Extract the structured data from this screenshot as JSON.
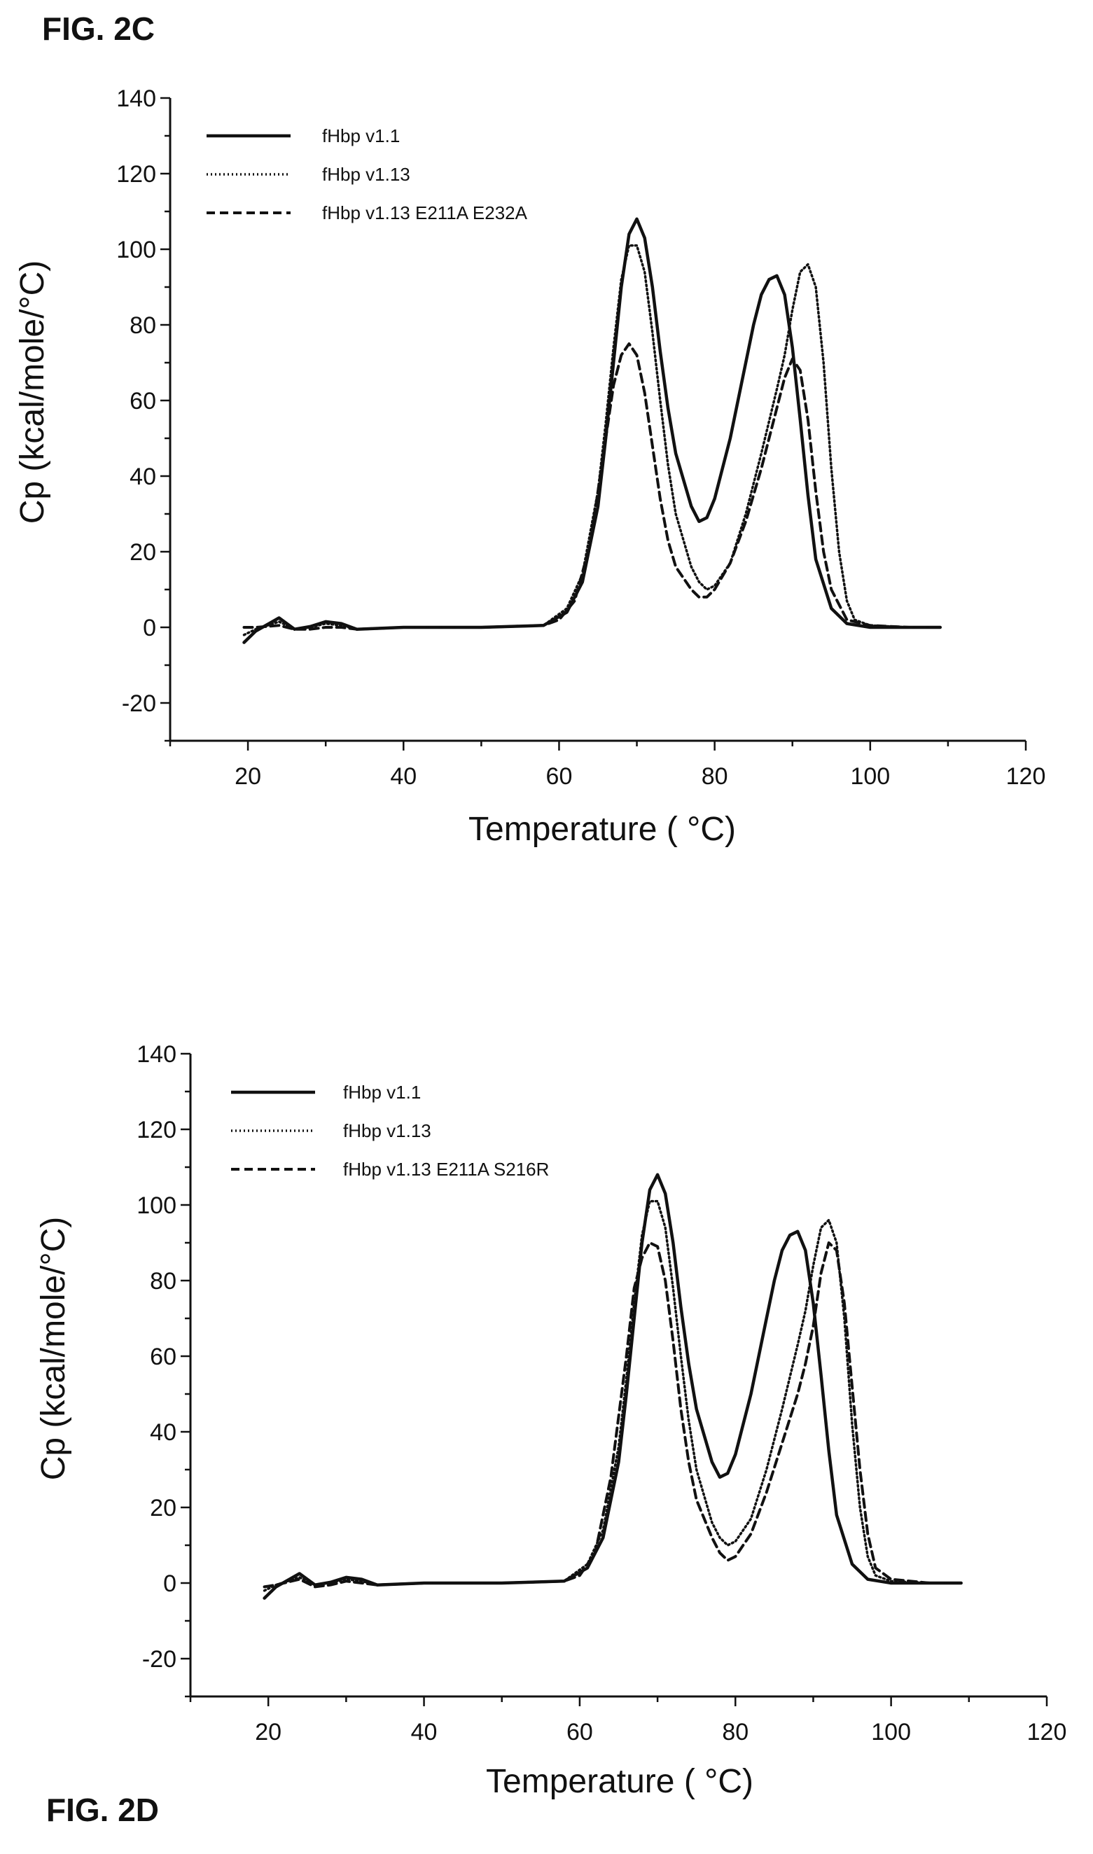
{
  "figures": [
    {
      "label": "FIG. 2C"
    },
    {
      "label": "FIG. 2D"
    }
  ],
  "chart_data": [
    {
      "type": "line",
      "title": "",
      "xlabel": "Temperature (  °C)",
      "ylabel": "Cp (kcal/mole/°C)",
      "xlim": [
        10,
        120
      ],
      "ylim": [
        -30,
        140
      ],
      "xticks": [
        20,
        40,
        60,
        80,
        100,
        120
      ],
      "yticks": [
        -20,
        0,
        20,
        40,
        60,
        80,
        100,
        120,
        140
      ],
      "legend_position": "top-left",
      "series": [
        {
          "name": "fHbp v1.1",
          "style": "solid",
          "x": [
            19.5,
            21,
            24,
            26,
            28,
            30,
            32,
            34,
            40,
            50,
            58,
            61,
            63,
            65,
            66,
            67,
            68,
            69,
            70,
            71,
            72,
            73,
            74,
            75,
            77,
            78,
            79,
            80,
            82,
            84,
            85,
            86,
            87,
            88,
            89,
            90,
            91,
            92,
            93,
            95,
            97,
            100,
            105,
            109
          ],
          "y": [
            -4,
            -1,
            2.5,
            -0.5,
            0.2,
            1.5,
            1,
            -0.5,
            0,
            0,
            0.5,
            4,
            12,
            32,
            50,
            70,
            90,
            104,
            108,
            103,
            90,
            73,
            58,
            46,
            32,
            28,
            29,
            34,
            50,
            70,
            80,
            88,
            92,
            93,
            88,
            74,
            55,
            35,
            18,
            5,
            1,
            0,
            0,
            0
          ]
        },
        {
          "name": "fHbp v1.13",
          "style": "dotted",
          "x": [
            19.5,
            21,
            24,
            26,
            28,
            30,
            32,
            34,
            40,
            50,
            58,
            61,
            63,
            65,
            66,
            67,
            68,
            69,
            70,
            71,
            72,
            73,
            74,
            75,
            77,
            78,
            79,
            80,
            82,
            84,
            86,
            88,
            89,
            90,
            91,
            92,
            93,
            94,
            95,
            96,
            97,
            98,
            100,
            105,
            109
          ],
          "y": [
            -2,
            -0.5,
            1.5,
            -0.5,
            0,
            1,
            0.5,
            -0.5,
            0,
            0,
            0.5,
            5,
            14,
            36,
            54,
            74,
            92,
            101,
            101,
            94,
            78,
            60,
            43,
            30,
            16,
            12,
            10,
            11,
            17,
            30,
            46,
            63,
            72,
            84,
            94,
            96,
            90,
            70,
            42,
            20,
            7,
            2,
            0.5,
            0,
            0
          ]
        },
        {
          "name": "fHbp v1.13 E211A E232A",
          "style": "dashed",
          "x": [
            19.5,
            21,
            24,
            26,
            28,
            30,
            32,
            34,
            40,
            50,
            58,
            60,
            62,
            64,
            66,
            67,
            68,
            69,
            70,
            71,
            72,
            73,
            74,
            75,
            77,
            78,
            79,
            80,
            82,
            84,
            86,
            88,
            89,
            90,
            91,
            92,
            93,
            94,
            95,
            97,
            100,
            105,
            109
          ],
          "y": [
            0,
            0,
            0.5,
            -0.5,
            -0.5,
            0,
            0,
            -0.5,
            0,
            0,
            0.5,
            2,
            7,
            22,
            50,
            64,
            72,
            75,
            72,
            62,
            48,
            34,
            23,
            16,
            10,
            8,
            8,
            10,
            17,
            28,
            42,
            58,
            66,
            71,
            68,
            55,
            36,
            20,
            10,
            2,
            0.5,
            0,
            0
          ]
        }
      ]
    },
    {
      "type": "line",
      "title": "",
      "xlabel": "Temperature (  °C)",
      "ylabel": "Cp (kcal/mole/°C)",
      "xlim": [
        10,
        120
      ],
      "ylim": [
        -30,
        140
      ],
      "xticks": [
        20,
        40,
        60,
        80,
        100,
        120
      ],
      "yticks": [
        -20,
        0,
        20,
        40,
        60,
        80,
        100,
        120,
        140
      ],
      "legend_position": "top-left",
      "series": [
        {
          "name": "fHbp v1.1",
          "style": "solid",
          "x": [
            19.5,
            21,
            24,
            26,
            28,
            30,
            32,
            34,
            40,
            50,
            58,
            61,
            63,
            65,
            66,
            67,
            68,
            69,
            70,
            71,
            72,
            73,
            74,
            75,
            77,
            78,
            79,
            80,
            82,
            84,
            85,
            86,
            87,
            88,
            89,
            90,
            91,
            92,
            93,
            95,
            97,
            100,
            105,
            109
          ],
          "y": [
            -4,
            -1,
            2.5,
            -0.5,
            0.2,
            1.5,
            1,
            -0.5,
            0,
            0,
            0.5,
            4,
            12,
            32,
            50,
            70,
            90,
            104,
            108,
            103,
            90,
            73,
            58,
            46,
            32,
            28,
            29,
            34,
            50,
            70,
            80,
            88,
            92,
            93,
            88,
            74,
            55,
            35,
            18,
            5,
            1,
            0,
            0,
            0
          ]
        },
        {
          "name": "fHbp v1.13",
          "style": "dotted",
          "x": [
            19.5,
            21,
            24,
            26,
            28,
            30,
            32,
            34,
            40,
            50,
            58,
            61,
            63,
            65,
            66,
            67,
            68,
            69,
            70,
            71,
            72,
            73,
            74,
            75,
            77,
            78,
            79,
            80,
            82,
            84,
            86,
            88,
            89,
            90,
            91,
            92,
            93,
            94,
            95,
            96,
            97,
            98,
            100,
            105,
            109
          ],
          "y": [
            -2,
            -0.5,
            1.5,
            -0.5,
            0,
            1,
            0.5,
            -0.5,
            0,
            0,
            0.5,
            5,
            14,
            36,
            54,
            74,
            92,
            101,
            101,
            94,
            78,
            60,
            43,
            30,
            16,
            12,
            10,
            11,
            17,
            30,
            46,
            63,
            72,
            84,
            94,
            96,
            90,
            70,
            42,
            20,
            7,
            2,
            0.5,
            0,
            0
          ]
        },
        {
          "name": "fHbp v1.13 E211A S216R",
          "style": "dashed",
          "x": [
            19.5,
            21,
            24,
            26,
            28,
            30,
            32,
            34,
            40,
            50,
            58,
            60,
            62,
            64,
            66,
            67,
            68,
            69,
            70,
            71,
            72,
            73,
            74,
            75,
            77,
            78,
            79,
            80,
            82,
            84,
            86,
            88,
            89,
            90,
            91,
            92,
            93,
            94,
            95,
            96,
            97,
            98,
            100,
            105,
            109
          ],
          "y": [
            -1,
            -0.5,
            1,
            -1,
            -0.5,
            0.5,
            0,
            -0.5,
            0,
            0,
            0.5,
            2,
            8,
            28,
            60,
            78,
            86,
            90,
            89,
            80,
            64,
            46,
            32,
            22,
            12,
            8,
            6,
            7,
            13,
            24,
            37,
            50,
            58,
            68,
            82,
            90,
            88,
            74,
            52,
            30,
            13,
            4,
            1,
            0,
            0
          ]
        }
      ]
    }
  ]
}
